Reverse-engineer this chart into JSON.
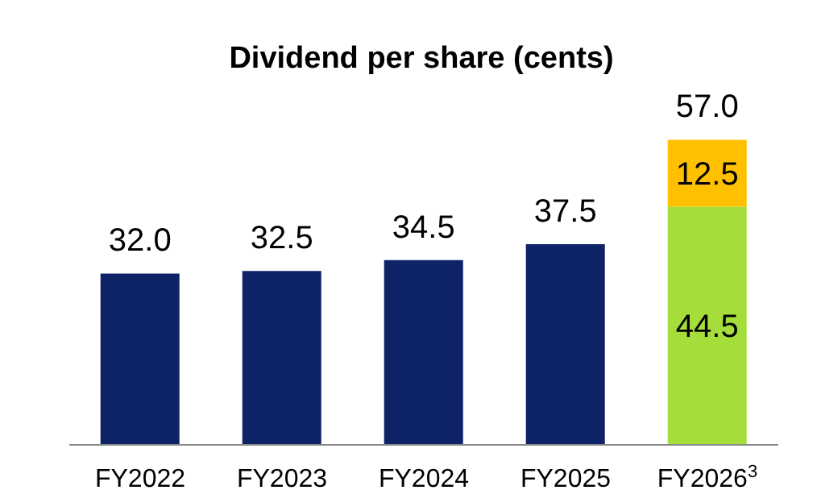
{
  "chart_data": {
    "type": "bar",
    "title": "Dividend per share (cents)",
    "stacked": true,
    "categories": [
      "FY2022",
      "FY2023",
      "FY2024",
      "FY2025",
      "FY2026$^{3}$"
    ],
    "series": [
      {
        "color": "#0d2267",
        "values": [
          32.0,
          32.5,
          34.5,
          37.5,
          null
        ],
        "value_labels": [
          "32.0",
          "32.5",
          "34.5",
          "37.5",
          null
        ]
      },
      {
        "color": "#a5de3a",
        "values": [
          null,
          null,
          null,
          null,
          44.5
        ],
        "value_labels": [
          null,
          null,
          null,
          null,
          "44.5"
        ]
      },
      {
        "color": "#ffc000",
        "values": [
          null,
          null,
          null,
          null,
          12.5
        ],
        "value_labels": [
          null,
          null,
          null,
          null,
          "12.5"
        ]
      }
    ],
    "totals": [
      null,
      null,
      null,
      null,
      "57.0"
    ],
    "grid": false,
    "legend": false
  }
}
